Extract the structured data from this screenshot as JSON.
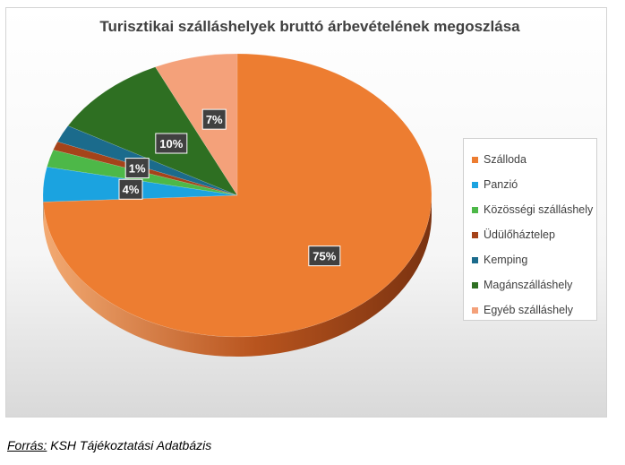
{
  "chart_data": {
    "type": "pie",
    "title": "Turisztikai szálláshelyek bruttó árbevételének megoszlása",
    "categories": [
      "Szálloda",
      "Panzió",
      "Közösségi szálláshely",
      "Üdülőháztelep",
      "Kemping",
      "Magánszálláshely",
      "Egyéb szálláshely"
    ],
    "values": [
      75,
      4,
      2,
      1,
      2,
      10,
      7
    ],
    "data_labels": [
      "75%",
      "4%",
      "",
      "1%",
      "",
      "10%",
      "7%"
    ],
    "colors": [
      "#ED7D31",
      "#1BA3E0",
      "#4DB848",
      "#A5431A",
      "#1B6B8C",
      "#2E6F22",
      "#F4A17A"
    ],
    "legend_position": "right",
    "style": "3d"
  },
  "source": {
    "label": "Forrás:",
    "text": " KSH Tájékoztatási Adatbázis"
  }
}
